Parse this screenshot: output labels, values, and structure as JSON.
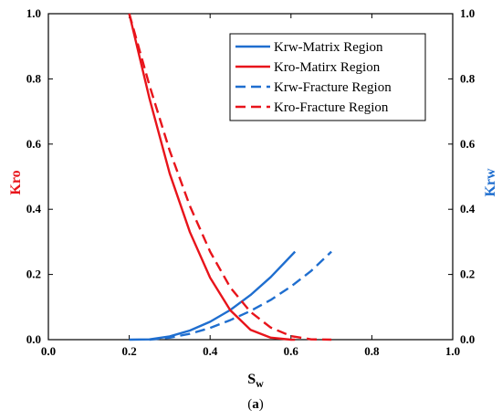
{
  "chart_data": {
    "type": "line",
    "x_axis": {
      "label_main": "S",
      "label_sub": "w",
      "range": [
        0.0,
        1.0
      ],
      "ticks": [
        "0.0",
        "0.2",
        "0.4",
        "0.6",
        "0.8",
        "1.0"
      ]
    },
    "y_left": {
      "label": "Kro",
      "range": [
        0.0,
        1.0
      ],
      "ticks": [
        "0.0",
        "0.2",
        "0.4",
        "0.6",
        "0.8",
        "1.0"
      ],
      "color": "#e8141b"
    },
    "y_right": {
      "label": "Krw",
      "range": [
        0.0,
        1.0
      ],
      "ticks": [
        "0.0",
        "0.2",
        "0.4",
        "0.6",
        "0.8",
        "1.0"
      ],
      "color": "#1f6ecf"
    },
    "caption": {
      "open": "(",
      "letter": "a",
      "close": ")"
    },
    "grid": false,
    "legend_position": "top-right",
    "series": [
      {
        "name": "Krw-Matrix Region",
        "color": "#1f6ecf",
        "dash": "solid",
        "x": [
          0.2,
          0.25,
          0.3,
          0.35,
          0.4,
          0.45,
          0.5,
          0.55,
          0.61
        ],
        "y": [
          0.0,
          0.001,
          0.01,
          0.028,
          0.055,
          0.091,
          0.137,
          0.192,
          0.27
        ]
      },
      {
        "name": "Kro-Matirx Region",
        "color": "#e8141b",
        "dash": "solid",
        "x": [
          0.2,
          0.25,
          0.3,
          0.35,
          0.4,
          0.45,
          0.5,
          0.55,
          0.6,
          0.61
        ],
        "y": [
          1.0,
          0.74,
          0.51,
          0.33,
          0.19,
          0.09,
          0.03,
          0.006,
          0.0,
          0.0
        ]
      },
      {
        "name": "Krw-Fracture Region",
        "color": "#1f6ecf",
        "dash": "dashed",
        "x": [
          0.25,
          0.3,
          0.35,
          0.4,
          0.45,
          0.5,
          0.55,
          0.6,
          0.65,
          0.7
        ],
        "y": [
          0.0,
          0.006,
          0.018,
          0.036,
          0.06,
          0.088,
          0.122,
          0.163,
          0.211,
          0.27
        ]
      },
      {
        "name": "Kro-Fracture Region",
        "color": "#e8141b",
        "dash": "dashed",
        "x": [
          0.2,
          0.25,
          0.3,
          0.35,
          0.4,
          0.45,
          0.5,
          0.55,
          0.6,
          0.65,
          0.7
        ],
        "y": [
          1.0,
          0.78,
          0.58,
          0.41,
          0.27,
          0.16,
          0.085,
          0.037,
          0.011,
          0.001,
          0.0
        ]
      }
    ]
  }
}
